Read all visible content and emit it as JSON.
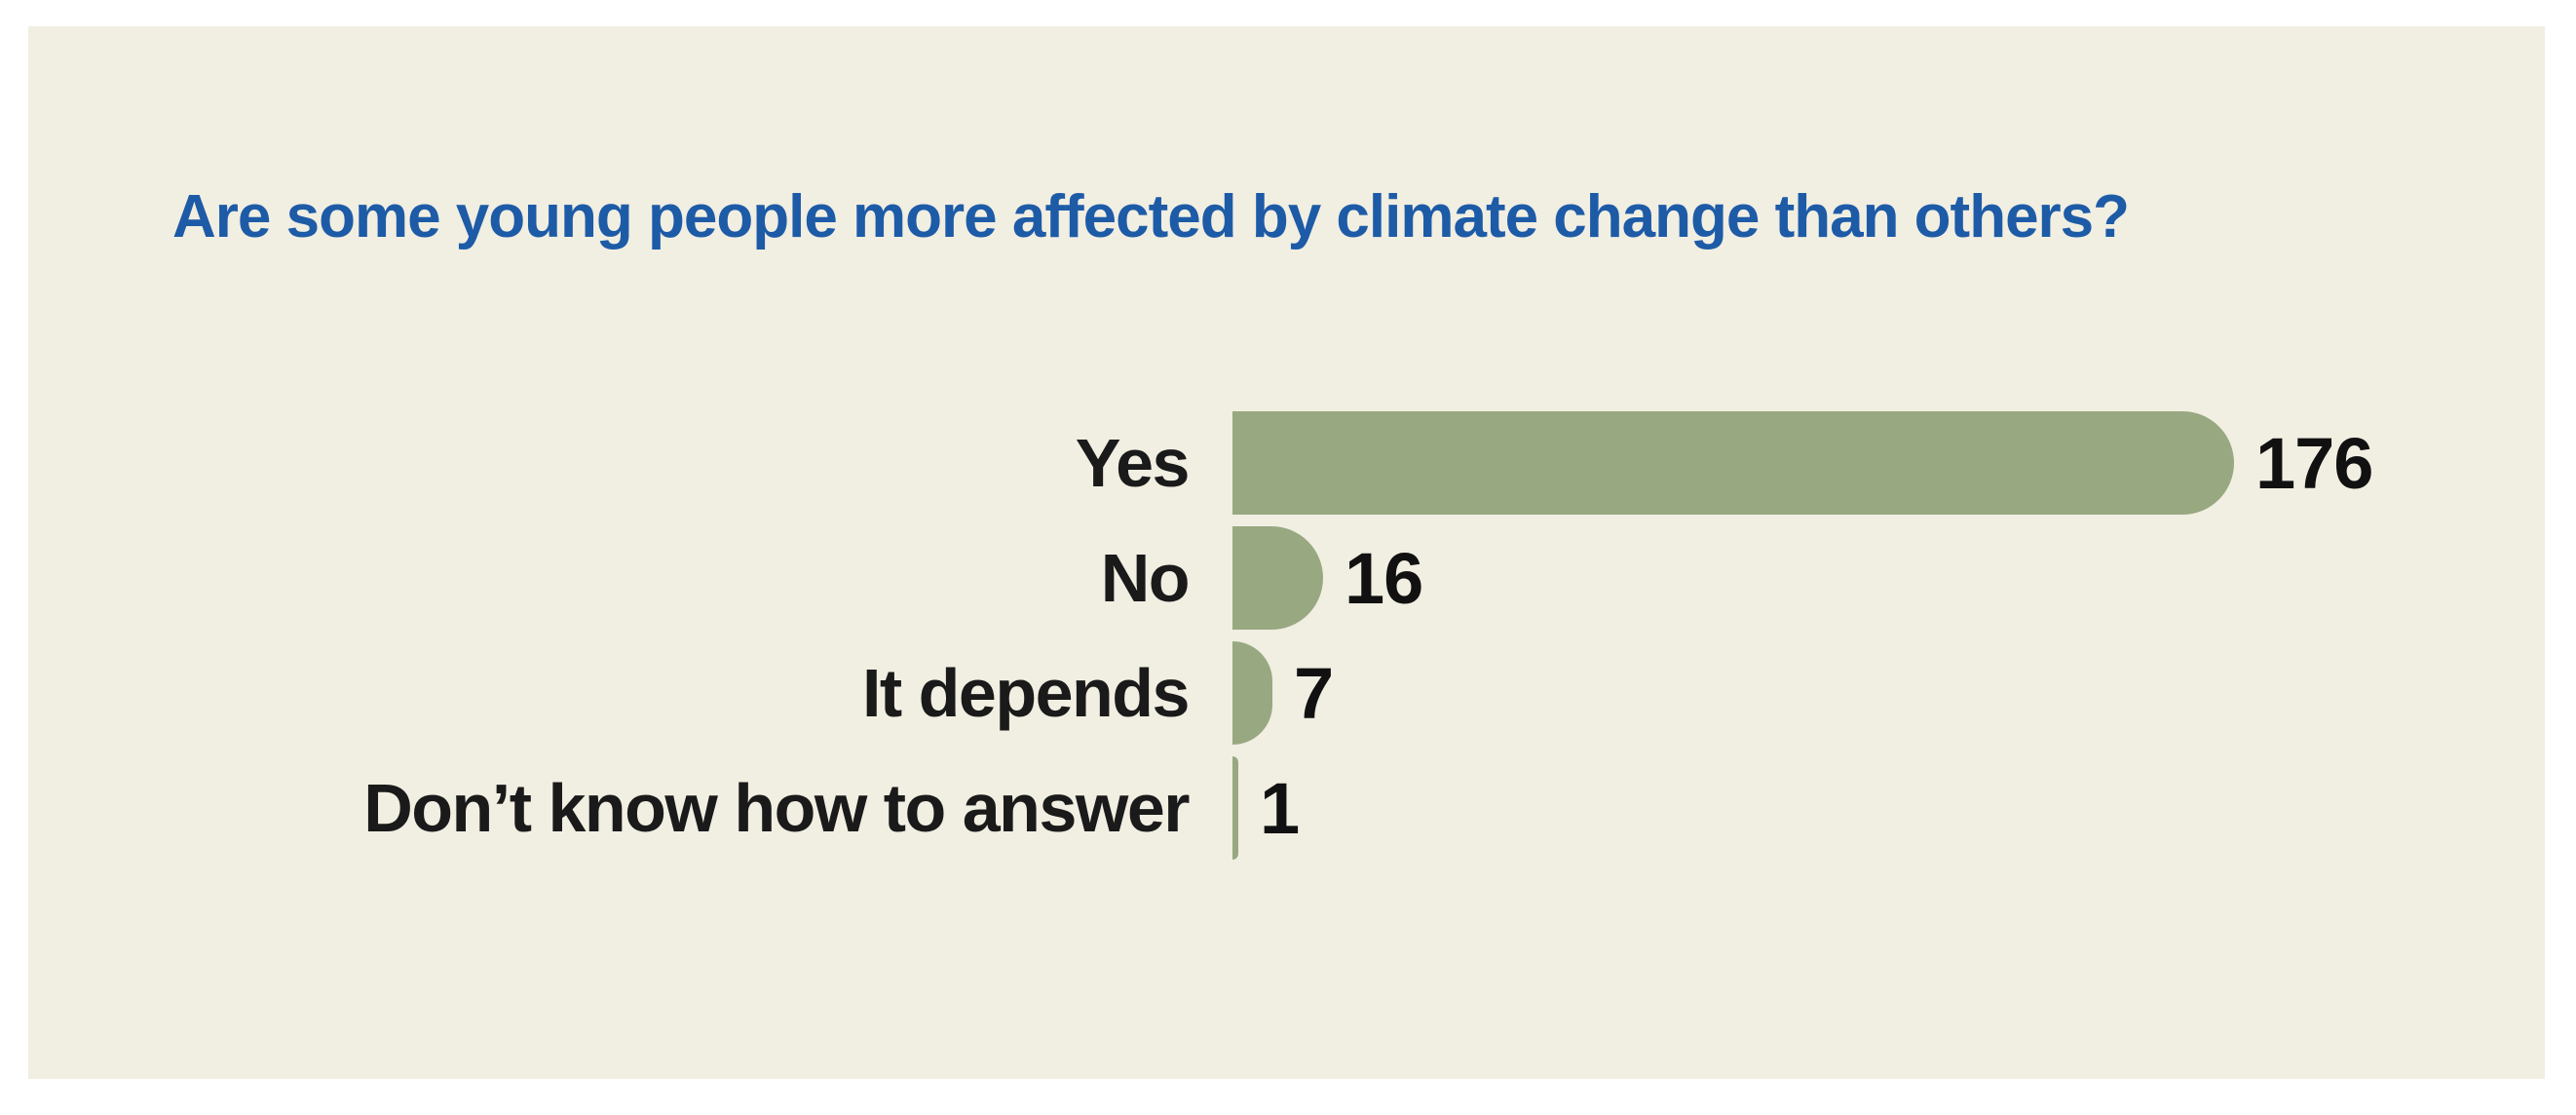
{
  "page": {
    "background_color": "#ffffff",
    "panel_background_color": "#f1eee2"
  },
  "chart_data": {
    "type": "bar",
    "orientation": "horizontal",
    "title": "Are some young people more affected by climate change than others?",
    "title_color": "#1d5ba7",
    "categories": [
      "Yes",
      "No",
      "It depends",
      "Don’t know how to answer"
    ],
    "values": [
      176,
      16,
      7,
      1
    ],
    "bar_color": "#98a881",
    "label_color": "#1a1a1a",
    "value_label_color": "#111111",
    "xlabel": "",
    "ylabel": "",
    "xlim": [
      0,
      176
    ],
    "grid": false,
    "legend": false,
    "value_labels_shown": true
  }
}
